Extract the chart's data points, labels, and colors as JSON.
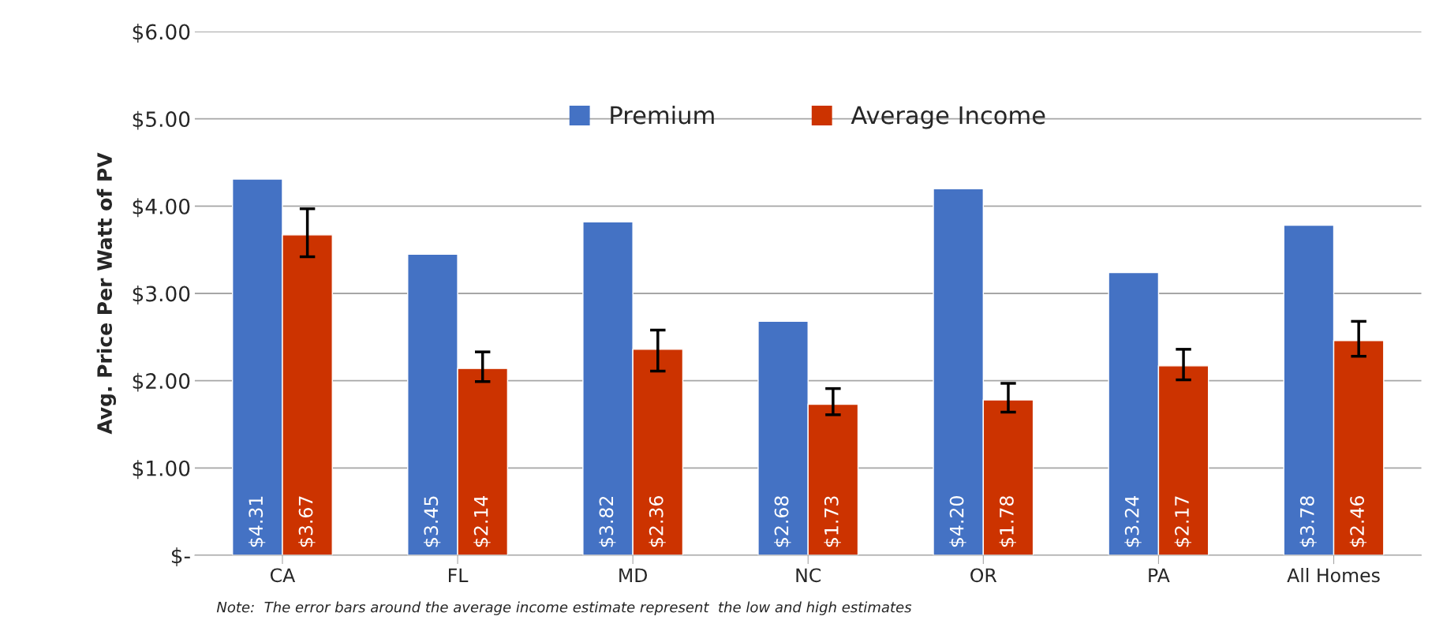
{
  "chart_data": {
    "type": "bar",
    "ylabel": "Avg. Price Per Watt of PV",
    "categories": [
      "CA",
      "FL",
      "MD",
      "NC",
      "OR",
      "PA",
      "All Homes"
    ],
    "series": [
      {
        "name": "Premium",
        "color": "#4472c4",
        "values": [
          4.31,
          3.45,
          3.82,
          2.68,
          4.2,
          3.24,
          3.78
        ],
        "value_labels": [
          "$4.31",
          "$3.45",
          "$3.82",
          "$2.68",
          "$4.20",
          "$3.24",
          "$3.78"
        ]
      },
      {
        "name": "Average Income",
        "color": "#cc3300",
        "values": [
          3.67,
          2.14,
          2.36,
          1.73,
          1.78,
          2.17,
          2.46
        ],
        "value_labels": [
          "$3.67",
          "$2.14",
          "$2.36",
          "$1.73",
          "$1.78",
          "$2.17",
          "$2.46"
        ],
        "errors": [
          [
            3.42,
            3.97
          ],
          [
            1.99,
            2.33
          ],
          [
            2.11,
            2.58
          ],
          [
            1.61,
            1.91
          ],
          [
            1.64,
            1.97
          ],
          [
            2.01,
            2.36
          ],
          [
            2.28,
            2.68
          ]
        ]
      }
    ],
    "ylim": [
      0,
      6
    ],
    "yticks": [
      {
        "value": 0,
        "label": "$-"
      },
      {
        "value": 1,
        "label": "$1.00"
      },
      {
        "value": 2,
        "label": "$2.00"
      },
      {
        "value": 3,
        "label": "$3.00"
      },
      {
        "value": 4,
        "label": "$4.00"
      },
      {
        "value": 5,
        "label": "$5.00"
      },
      {
        "value": 6,
        "label": "$6.00"
      }
    ],
    "grid": "y",
    "legend": "top",
    "annotations": [
      "Note:  The error bars around the average income estimate represent  the low and high estimates"
    ]
  }
}
